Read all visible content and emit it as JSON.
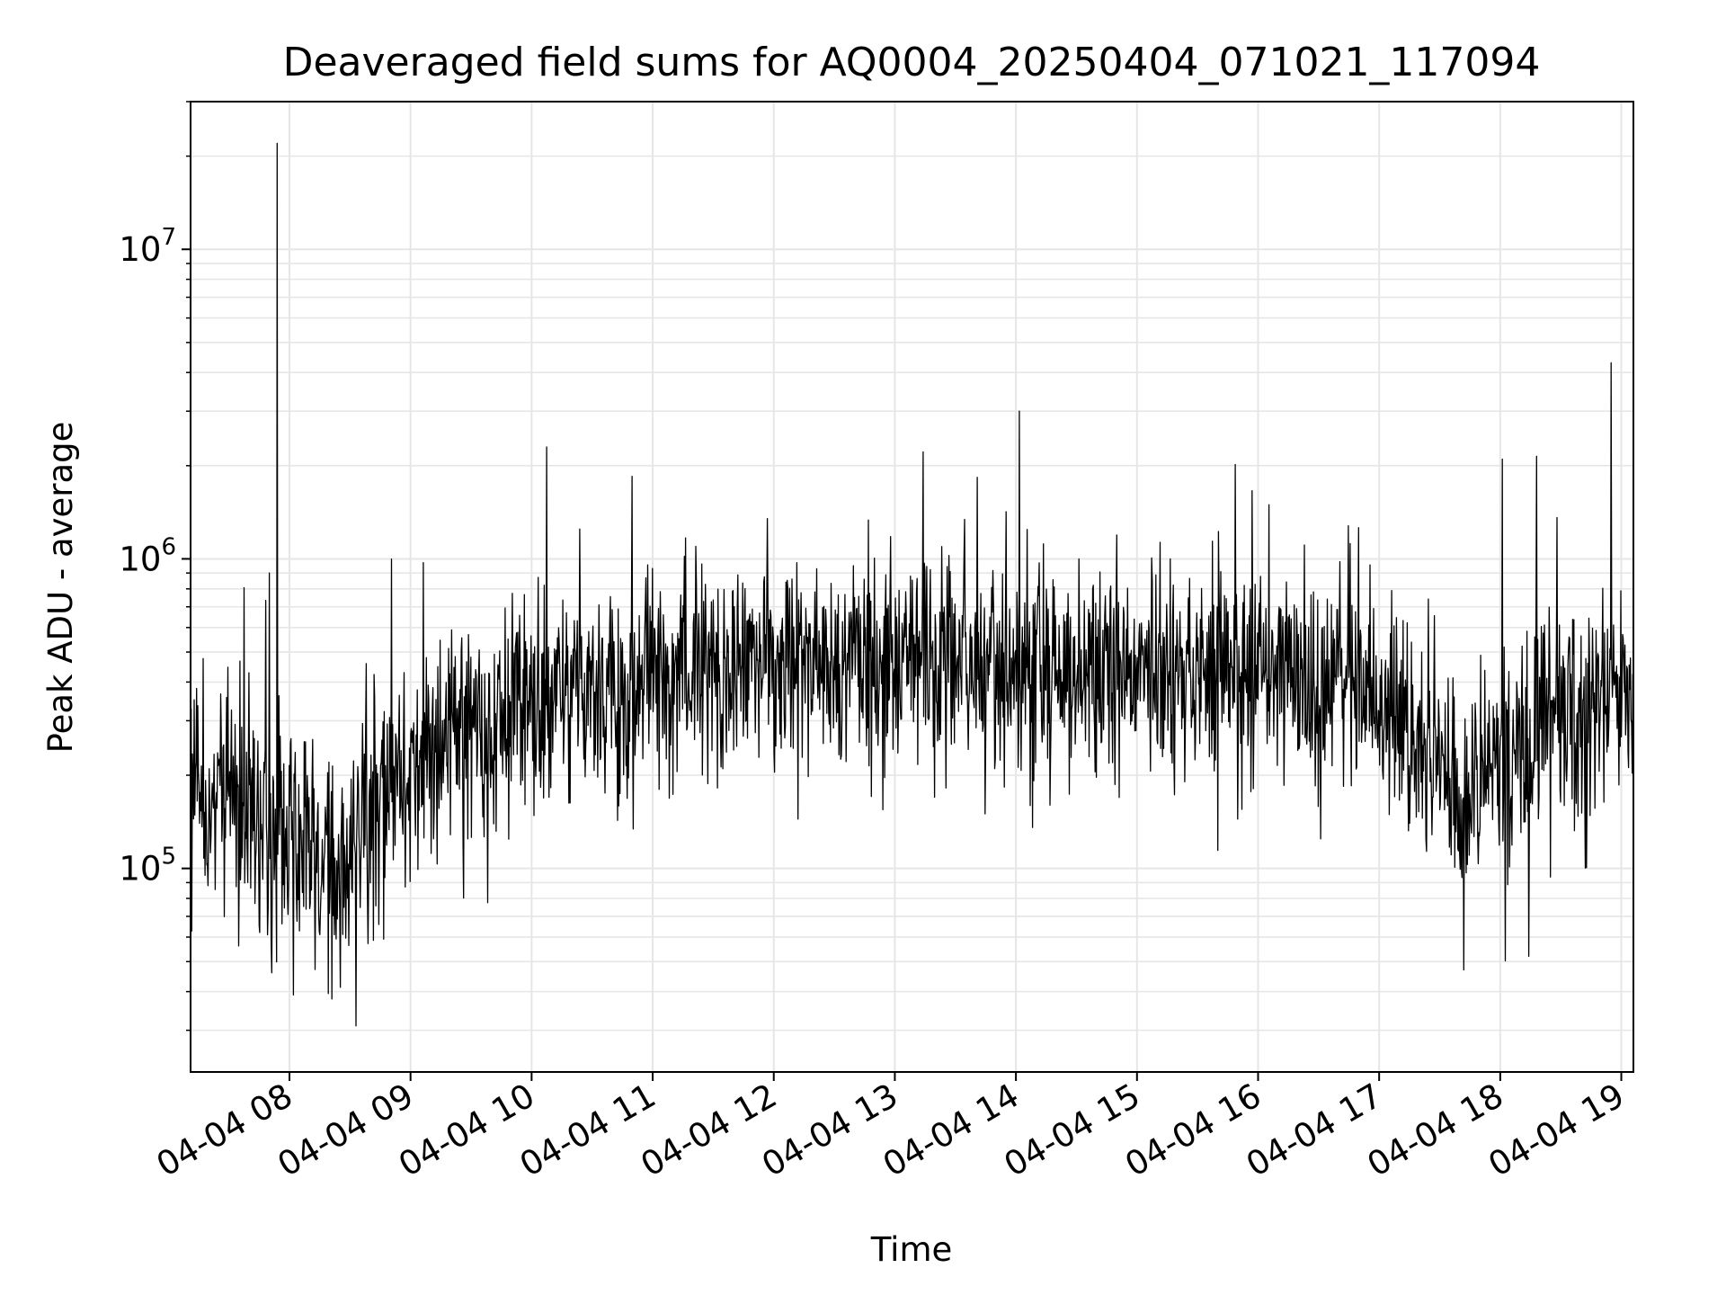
{
  "chart_data": {
    "type": "line",
    "title": "Deaveraged field sums for AQ0004_20250404_071021_117094",
    "xlabel": "Time",
    "ylabel": "Peak ADU - average",
    "yscale": "log",
    "xlim": [
      "04-04 07:11",
      "04-04 19:06"
    ],
    "ylim": [
      22000,
      30000000
    ],
    "grid": true,
    "line_color": "#000000",
    "grid_color": "#e6e6e6",
    "x_ticks": [
      "04-04 08",
      "04-04 09",
      "04-04 10",
      "04-04 11",
      "04-04 12",
      "04-04 13",
      "04-04 14",
      "04-04 15",
      "04-04 16",
      "04-04 17",
      "04-04 18",
      "04-04 19"
    ],
    "y_ticks": [
      {
        "value": 100000,
        "base": "10",
        "exp": "5"
      },
      {
        "value": 1000000,
        "base": "10",
        "exp": "6"
      },
      {
        "value": 10000000,
        "base": "10",
        "exp": "7"
      }
    ],
    "series": [
      {
        "trend": [
          {
            "time": "04-04 07:11",
            "value": 170000
          },
          {
            "time": "04-04 07:30",
            "value": 165000
          },
          {
            "time": "04-04 07:50",
            "value": 150000
          },
          {
            "time": "04-04 08:10",
            "value": 110000
          },
          {
            "time": "04-04 08:30",
            "value": 115000
          },
          {
            "time": "04-04 08:50",
            "value": 170000
          },
          {
            "time": "04-04 09:10",
            "value": 240000
          },
          {
            "time": "04-04 09:30",
            "value": 290000
          },
          {
            "time": "04-04 10:00",
            "value": 350000
          },
          {
            "time": "04-04 11:00",
            "value": 400000
          },
          {
            "time": "04-04 12:00",
            "value": 440000
          },
          {
            "time": "04-04 13:00",
            "value": 460000
          },
          {
            "time": "04-04 14:00",
            "value": 430000
          },
          {
            "time": "04-04 15:00",
            "value": 420000
          },
          {
            "time": "04-04 16:00",
            "value": 420000
          },
          {
            "time": "04-04 16:50",
            "value": 380000
          },
          {
            "time": "04-04 17:15",
            "value": 260000
          },
          {
            "time": "04-04 17:40",
            "value": 180000
          },
          {
            "time": "04-04 18:00",
            "value": 220000
          },
          {
            "time": "04-04 18:20",
            "value": 320000
          },
          {
            "time": "04-04 19:06",
            "value": 330000
          }
        ],
        "spikes": [
          {
            "time": "04-04 07:50",
            "value": 900000
          },
          {
            "time": "04-04 07:54",
            "value": 22000000
          },
          {
            "time": "04-04 08:02",
            "value": 39000
          },
          {
            "time": "04-04 08:33",
            "value": 31000
          },
          {
            "time": "04-04 12:58",
            "value": 1180000
          },
          {
            "time": "04-04 13:55",
            "value": 1420000
          },
          {
            "time": "04-04 18:01",
            "value": 2100000
          },
          {
            "time": "04-04 17:42",
            "value": 47000
          },
          {
            "time": "04-04 18:14",
            "value": 52000
          },
          {
            "time": "04-04 18:28",
            "value": 1360000
          },
          {
            "time": "04-04 18:55",
            "value": 4300000
          }
        ]
      }
    ]
  }
}
